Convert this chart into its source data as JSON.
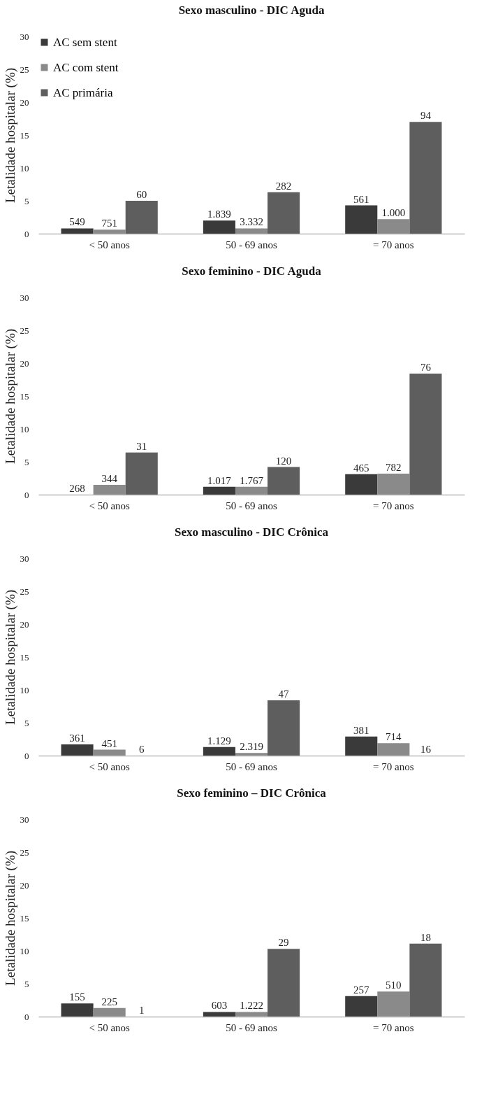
{
  "chart_data": [
    {
      "type": "bar",
      "title": "Sexo masculino - DIC Aguda",
      "ylabel": "Letalidade hospitalar (%)",
      "categories": [
        "< 50 anos",
        "50 - 69 anos",
        "= 70 anos"
      ],
      "ylim": [
        0,
        30
      ],
      "yticks": [
        0,
        5,
        10,
        15,
        20,
        25,
        30
      ],
      "grid": false,
      "legend": "top left",
      "series": [
        {
          "name": "AC sem stent",
          "color": "#3a3a3a",
          "values": [
            0.8,
            2.0,
            4.3
          ]
        },
        {
          "name": "AC com stent",
          "color": "#8a8a8a",
          "values": [
            0.6,
            0.8,
            2.2
          ]
        },
        {
          "name": "AC primária",
          "color": "#5e5e5e",
          "values": [
            5.0,
            6.3,
            17.0
          ]
        }
      ],
      "annotations": [
        "549",
        "751",
        "60",
        "1.839",
        "3.332",
        "282",
        "561",
        "1.000",
        "94"
      ]
    },
    {
      "type": "bar",
      "title": "Sexo feminino - DIC Aguda",
      "ylabel": "Letalidade hospitalar (%)",
      "categories": [
        "< 50 anos",
        "50 - 69 anos",
        "= 70 anos"
      ],
      "ylim": [
        0,
        30
      ],
      "yticks": [
        0,
        5,
        10,
        15,
        20,
        25,
        30
      ],
      "grid": false,
      "series": [
        {
          "color": "#3a3a3a",
          "values": [
            0,
            1.2,
            3.1
          ]
        },
        {
          "color": "#8a8a8a",
          "values": [
            1.5,
            1.2,
            3.2
          ]
        },
        {
          "color": "#5e5e5e",
          "values": [
            6.4,
            4.2,
            18.4
          ]
        }
      ],
      "annotations": [
        "268",
        "344",
        "31",
        "1.017",
        "1.767",
        "120",
        "465",
        "782",
        "76"
      ]
    },
    {
      "type": "bar",
      "title": "Sexo masculino - DIC Crônica",
      "ylabel": "Letalidade hospitalar (%)",
      "categories": [
        "< 50 anos",
        "50 - 69 anos",
        "= 70 anos"
      ],
      "ylim": [
        0,
        30
      ],
      "yticks": [
        0,
        5,
        10,
        15,
        20,
        25,
        30
      ],
      "grid": false,
      "series": [
        {
          "color": "#3a3a3a",
          "values": [
            1.7,
            1.3,
            2.9
          ]
        },
        {
          "color": "#8a8a8a",
          "values": [
            0.9,
            0.4,
            1.9
          ]
        },
        {
          "color": "#5e5e5e",
          "values": [
            0,
            8.4,
            0
          ]
        }
      ],
      "annotations": [
        "361",
        "451",
        "6",
        "1.129",
        "2.319",
        "47",
        "381",
        "714",
        "16"
      ]
    },
    {
      "type": "bar",
      "title": "Sexo feminino – DIC Crônica",
      "ylabel": "Letalidade hospitalar (%)",
      "categories": [
        "< 50 anos",
        "50 - 69 anos",
        "= 70 anos"
      ],
      "ylim": [
        0,
        30
      ],
      "yticks": [
        0,
        5,
        10,
        15,
        20,
        25,
        30
      ],
      "grid": false,
      "series": [
        {
          "color": "#3a3a3a",
          "values": [
            2.0,
            0.7,
            3.1
          ]
        },
        {
          "color": "#8a8a8a",
          "values": [
            1.3,
            0.7,
            3.8
          ]
        },
        {
          "color": "#5e5e5e",
          "values": [
            0,
            10.3,
            11.1
          ]
        }
      ],
      "annotations": [
        "155",
        "225",
        "1",
        "603",
        "1.222",
        "29",
        "257",
        "510",
        "18"
      ]
    }
  ]
}
